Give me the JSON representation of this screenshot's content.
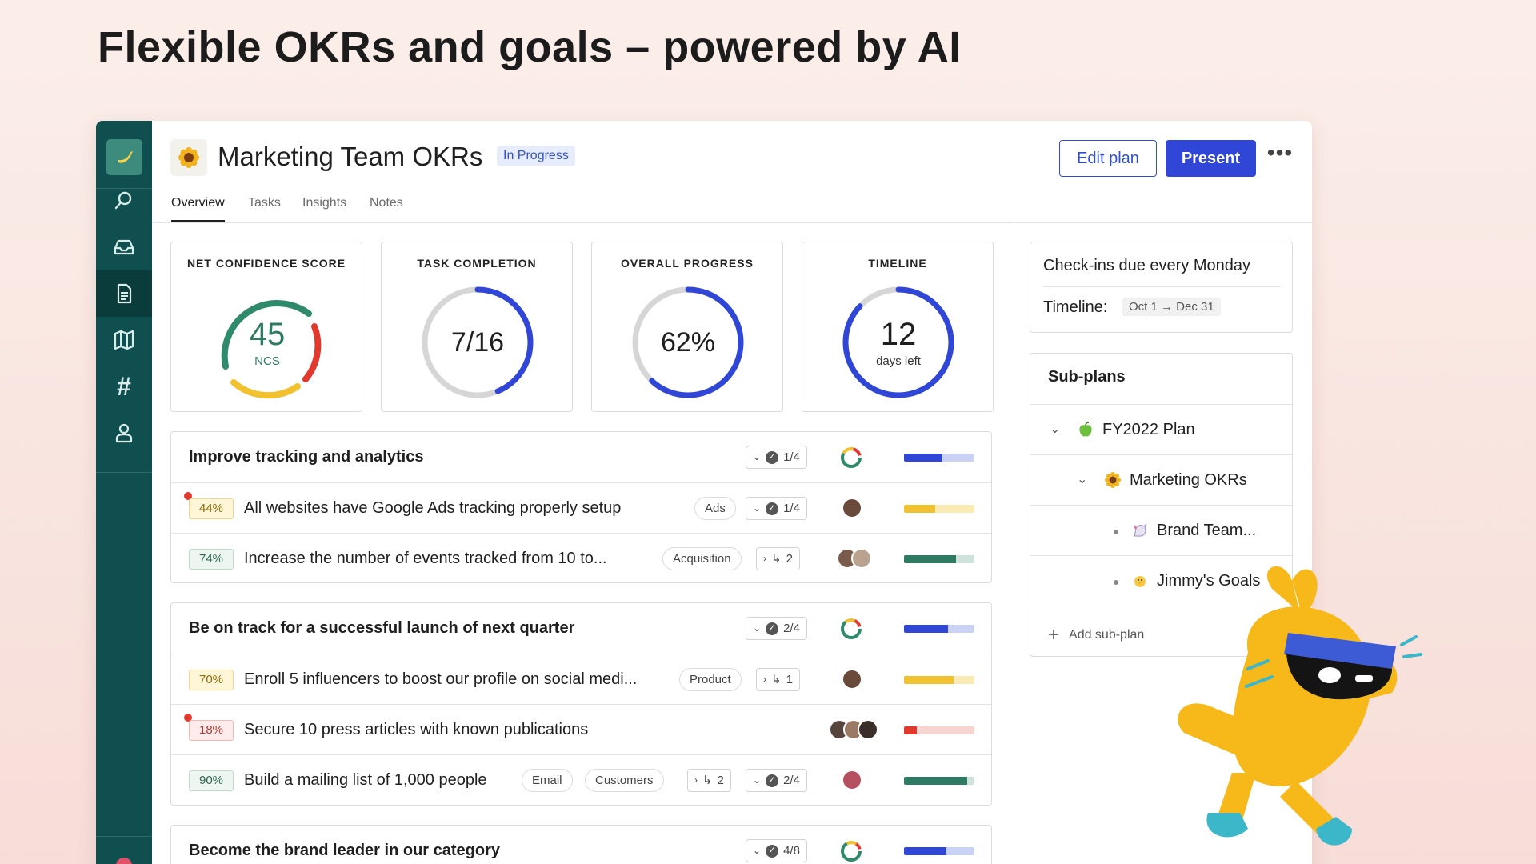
{
  "headline": "Flexible OKRs and goals – powered by AI",
  "plan": {
    "title": "Marketing Team OKRs",
    "status": "In Progress",
    "edit_label": "Edit plan",
    "present_label": "Present",
    "more_label": "•••",
    "tabs": [
      "Overview",
      "Tasks",
      "Insights",
      "Notes"
    ],
    "active_tab": "Overview"
  },
  "metrics": {
    "ncs": {
      "label": "NET CONFIDENCE SCORE",
      "value": "45",
      "unit": "NCS"
    },
    "tasks": {
      "label": "TASK COMPLETION",
      "value": "7/16",
      "done": 7,
      "total": 16
    },
    "progress": {
      "label": "OVERALL PROGRESS",
      "value": "62%",
      "fraction": 0.62
    },
    "timeline": {
      "label": "TIMELINE",
      "value": "12",
      "unit": "days left",
      "fraction": 0.87
    }
  },
  "objectives": [
    {
      "title": "Improve tracking and analytics",
      "checks": "1/4",
      "progress": 0.55,
      "krs": [
        {
          "pct": "44%",
          "title": "All websites have Google Ads tracking properly setup",
          "tag": "Ads",
          "checks": "1/4",
          "progress": 0.44,
          "flag": true
        },
        {
          "pct": "74%",
          "title": "Increase the number of events tracked from 10 to...",
          "tag": "Acquisition",
          "subs": "2",
          "progress": 0.74
        }
      ]
    },
    {
      "title": "Be on track for a successful launch of next quarter",
      "checks": "2/4",
      "progress": 0.62,
      "krs": [
        {
          "pct": "70%",
          "title": "Enroll 5 influencers to boost our profile on social medi...",
          "tag": "Product",
          "subs": "1",
          "progress": 0.7
        },
        {
          "pct": "18%",
          "title": "Secure 10 press articles with known publications",
          "progress": 0.18,
          "flag": true
        },
        {
          "pct": "90%",
          "title": "Build a mailing list of 1,000 people",
          "tags": [
            "Email",
            "Customers"
          ],
          "subs": "2",
          "checks": "2/4",
          "progress": 0.9
        }
      ]
    },
    {
      "title": "Become the brand leader in our category",
      "checks": "4/8",
      "progress": 0.6
    }
  ],
  "side": {
    "checkin": "Check-ins due every Monday",
    "timeline_label": "Timeline:",
    "timeline_range": "Oct 1 → Dec 31"
  },
  "subplans": {
    "title": "Sub-plans",
    "items": [
      "FY2022 Plan",
      "Marketing OKRs",
      "Brand Team...",
      "Jimmy's Goals"
    ],
    "add_label": "Add sub-plan"
  },
  "colors": {
    "rail": "#0f4f4f",
    "accent": "#2f46d6",
    "green": "#2f8a6c",
    "amber": "#f2c12e",
    "red": "#e2392f"
  }
}
